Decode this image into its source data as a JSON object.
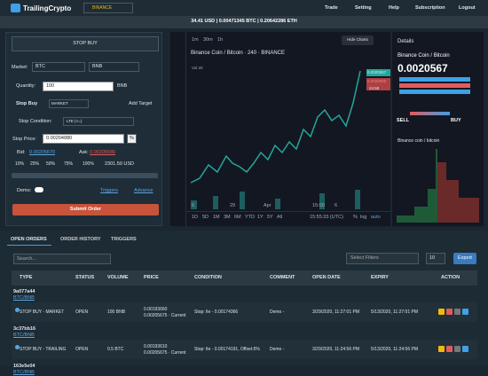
{
  "nav": {
    "brand": "TrailingCrypto",
    "exchange": "BINANCE",
    "links": [
      "Trade",
      "Setting",
      "Help",
      "Subscription",
      "Logout"
    ]
  },
  "ticker": "34.41 USD | 0.00471345 BTC | 0.20642286 ETH",
  "order_form": {
    "order_type": "STOP BUY",
    "market_label": "Market:",
    "market_base": "BTC",
    "market_quote": "BNB",
    "quantity_label": "Quantity:",
    "quantity": "100",
    "quantity_unit": "BNB",
    "section": "Stop Buy",
    "execution": "MARKET",
    "add_target": "Add Target",
    "condition_label": "Stop Condition:",
    "condition": "LTE (<=)",
    "stop_price_label": "Stop Price:",
    "stop_price": "0.00204980",
    "percent_sign": "%",
    "bid_label": "Bid:",
    "bid": "0.00205670",
    "ask_label": "Ask:",
    "ask": "0.00205680",
    "percents": [
      "10%",
      "25%",
      "50%",
      "75%",
      "100%"
    ],
    "total": "2301.50 USD",
    "demo_label": "Demo:",
    "triggers": "Triggers",
    "advance": "Advance",
    "submit": "Submit Order"
  },
  "price_chart": {
    "intervals": [
      "1m",
      "30m",
      "1h"
    ],
    "hide": "Hide Charts",
    "title": "Binance Coin / Bitcoin · 240 · BINANCE",
    "volume": "Vol 20",
    "price_tags": [
      "0.0020567",
      "0.0020000",
      "24:58"
    ],
    "dates": [
      "6",
      "29",
      "Apr",
      "15:00",
      "6"
    ],
    "ranges": [
      "1D",
      "5D",
      "1M",
      "3M",
      "6M",
      "YTD",
      "1Y",
      "5Y",
      "All"
    ],
    "clock": "15:55:33 (UTC)",
    "scale_options": [
      "%",
      "log",
      "auto"
    ]
  },
  "details": {
    "heading": "Details",
    "pair": "Binance Coin / Bitcoin",
    "price": "0.0020567",
    "sell": "SELL",
    "buy": "BUY",
    "depth_title": "Binance coin / bitcoin"
  },
  "orders": {
    "tabs": [
      "OPEN ORDERS",
      "ORDER HISTORY",
      "TRIGGERS"
    ],
    "search": "Search...",
    "filters": "Select Filters",
    "page_size": "10",
    "export": "Export",
    "headers": [
      "TYPE",
      "STATUS",
      "VOLUME",
      "PRICE",
      "CONDITION",
      "COMMENT",
      "OPEN DATE",
      "EXPIRY",
      "ACTION"
    ],
    "groups": [
      {
        "id": "9a077a44",
        "pair": "BTC/BNB",
        "row": [
          "STOP BUY - MARKET",
          "OPEN",
          "100 BNB",
          "0.00193660",
          "0.00205675 · Current",
          "Stop: lte - 0.00174366",
          "Demo -",
          "3/29/2020, 11:27:01 PM",
          "5/13/2020, 11:27:01 PM"
        ]
      },
      {
        "id": "3c37bb16",
        "pair": "BTC/BNB",
        "row": [
          "STOP BUY - TRAILING",
          "OPEN",
          "0.5 BTC",
          "0.00193610",
          "0.00205675 · Current",
          "Stop: lte - 0.00174191, Offset:5%",
          "Demo -",
          "3/29/2020, 11:24:56 PM",
          "5/13/2020, 11:24:56 PM"
        ]
      },
      {
        "id": "163e5e04",
        "pair": "BTC/BNB"
      }
    ]
  }
}
